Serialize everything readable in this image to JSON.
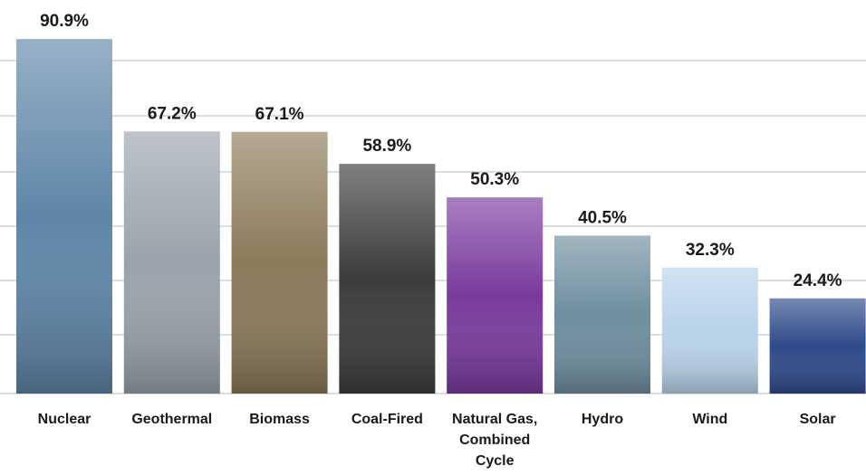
{
  "chart_data": {
    "type": "bar",
    "categories": [
      "Nuclear",
      "Geothermal",
      "Biomass",
      "Coal-Fired",
      "Natural Gas, Combined Cycle",
      "Hydro",
      "Wind",
      "Solar"
    ],
    "values": [
      90.9,
      67.2,
      67.1,
      58.9,
      50.3,
      40.5,
      32.3,
      24.4
    ],
    "value_labels": [
      "90.9%",
      "67.2%",
      "67.1%",
      "58.9%",
      "50.3%",
      "40.5%",
      "32.3%",
      "24.4%"
    ],
    "colors": [
      "#5f86a8",
      "#9aa3ab",
      "#8b7a5a",
      "#3e3c3a",
      "#7a3a9e",
      "#6f8e9e",
      "#b9d3ea",
      "#2e4a8a"
    ],
    "ylim": [
      0,
      100
    ],
    "grid": true
  }
}
